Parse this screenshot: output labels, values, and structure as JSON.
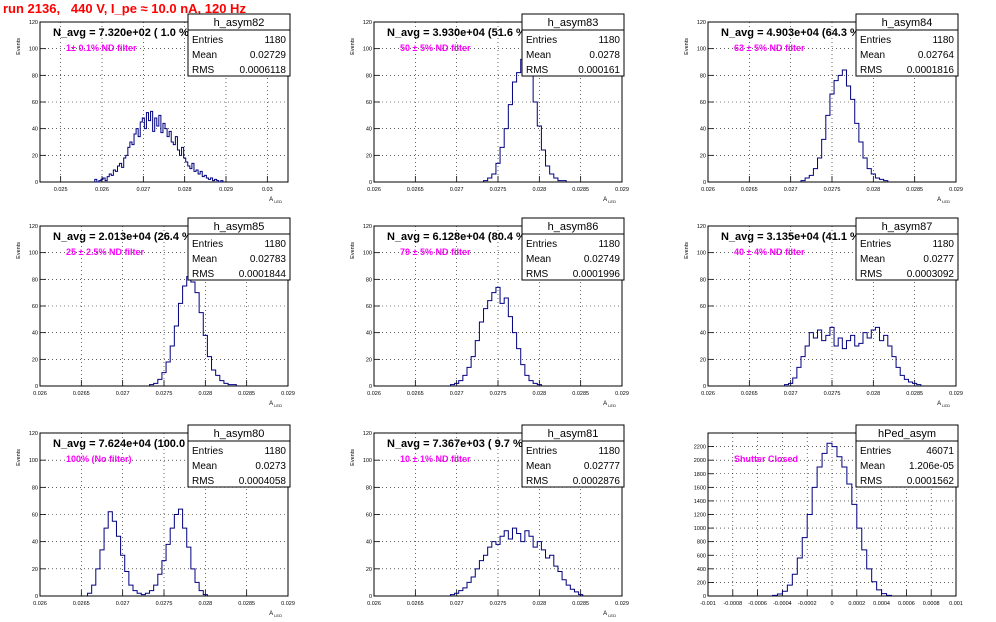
{
  "page": {
    "title": "run 2136,   440 V, I_pe ≈ 10.0 nA, 120 Hz",
    "title_color": "#ff0000",
    "hist_color": "#000080",
    "note_color": "#ff00ff"
  },
  "chart_data": [
    {
      "type": "histogram",
      "name": "h_asym82",
      "title": "N_avg = 7.320e+02 ( 1.0 %)",
      "annotation": "1± 0.1% ND filter",
      "stats": {
        "Entries": "1180",
        "Mean": "0.02729",
        "RMS": "0.0006118"
      },
      "ylabel": "Events",
      "xlabel": "A_LED",
      "xlim": [
        0.0245,
        0.0305
      ],
      "ylim": [
        0,
        120
      ],
      "x_ticks": [
        "0.025",
        "0.026",
        "0.027",
        "0.028",
        "0.029",
        "0.03"
      ],
      "y_ticks": [
        "0",
        "20",
        "40",
        "60",
        "80",
        "100",
        "120"
      ],
      "x": [
        0.02585,
        0.0259,
        0.02595,
        0.026,
        0.02605,
        0.0261,
        0.02615,
        0.0262,
        0.02625,
        0.0263,
        0.02635,
        0.0264,
        0.02645,
        0.0265,
        0.02655,
        0.0266,
        0.02665,
        0.0267,
        0.02675,
        0.0268,
        0.02685,
        0.0269,
        0.02695,
        0.027,
        0.02705,
        0.0271,
        0.02715,
        0.0272,
        0.02725,
        0.0273,
        0.02735,
        0.0274,
        0.02745,
        0.0275,
        0.02755,
        0.0276,
        0.02765,
        0.0277,
        0.02775,
        0.0278,
        0.02785,
        0.0279,
        0.02795,
        0.028,
        0.02805,
        0.0281,
        0.02815,
        0.0282,
        0.02825,
        0.0283,
        0.02835,
        0.0284,
        0.02845,
        0.0285,
        0.02855,
        0.0286,
        0.02865,
        0.0287,
        0.02875,
        0.0288,
        0.02885,
        0.0289
      ],
      "y": [
        2,
        0,
        1,
        2,
        3,
        1,
        4,
        6,
        5,
        9,
        8,
        12,
        14,
        11,
        18,
        20,
        26,
        30,
        28,
        36,
        40,
        34,
        45,
        48,
        40,
        52,
        46,
        53,
        38,
        48,
        42,
        50,
        37,
        44,
        40,
        34,
        38,
        30,
        28,
        34,
        24,
        20,
        26,
        18,
        15,
        12,
        10,
        14,
        8,
        9,
        6,
        8,
        4,
        5,
        3,
        2,
        3,
        1,
        2,
        1,
        0,
        1
      ]
    },
    {
      "type": "histogram",
      "name": "h_asym83",
      "title": "N_avg = 3.930e+04 (51.6 %)",
      "annotation": "50 ± 5% ND filter",
      "stats": {
        "Entries": "1180",
        "Mean": "0.0278",
        "RMS": "0.000161"
      },
      "ylabel": "Events",
      "xlabel": "A_LED",
      "xlim": [
        0.026,
        0.029
      ],
      "ylim": [
        0,
        120
      ],
      "x_ticks": [
        "0.026",
        "0.0265",
        "0.027",
        "0.0275",
        "0.028",
        "0.0285",
        "0.029"
      ],
      "y_ticks": [
        "0",
        "20",
        "40",
        "60",
        "80",
        "100",
        "120"
      ],
      "x": [
        0.02735,
        0.0274,
        0.02745,
        0.0275,
        0.02755,
        0.0276,
        0.02765,
        0.0277,
        0.02775,
        0.0278,
        0.02785,
        0.0279,
        0.02795,
        0.028,
        0.02805,
        0.0281,
        0.02815,
        0.0282,
        0.02825,
        0.0283
      ],
      "y": [
        1,
        3,
        6,
        14,
        26,
        40,
        58,
        75,
        82,
        92,
        86,
        80,
        60,
        42,
        24,
        12,
        6,
        3,
        1,
        1
      ]
    },
    {
      "type": "histogram",
      "name": "h_asym84",
      "title": "N_avg = 4.903e+04 (64.3 %)",
      "annotation": "63 ± 5% ND filter",
      "stats": {
        "Entries": "1180",
        "Mean": "0.02764",
        "RMS": "0.0001816"
      },
      "ylabel": "Events",
      "xlabel": "A_LED",
      "xlim": [
        0.026,
        0.029
      ],
      "ylim": [
        0,
        120
      ],
      "x_ticks": [
        "0.026",
        "0.0265",
        "0.027",
        "0.0275",
        "0.028",
        "0.0285",
        "0.029"
      ],
      "y_ticks": [
        "0",
        "20",
        "40",
        "60",
        "80",
        "100",
        "120"
      ],
      "x": [
        0.02715,
        0.0272,
        0.02725,
        0.0273,
        0.02735,
        0.0274,
        0.02745,
        0.0275,
        0.02755,
        0.0276,
        0.02765,
        0.0277,
        0.02775,
        0.0278,
        0.02785,
        0.0279,
        0.02795,
        0.028,
        0.02805,
        0.0281,
        0.02815
      ],
      "y": [
        1,
        3,
        5,
        10,
        18,
        32,
        50,
        66,
        76,
        80,
        84,
        72,
        62,
        44,
        30,
        18,
        10,
        6,
        3,
        2,
        1
      ]
    },
    {
      "type": "histogram",
      "name": "h_asym85",
      "title": "N_avg = 2.013e+04 (26.4 %)",
      "annotation": "25 ± 2.5% ND filter",
      "stats": {
        "Entries": "1180",
        "Mean": "0.02783",
        "RMS": "0.0001844"
      },
      "ylabel": "Events",
      "xlabel": "A_LED",
      "xlim": [
        0.026,
        0.029
      ],
      "ylim": [
        0,
        120
      ],
      "x_ticks": [
        "0.026",
        "0.0265",
        "0.027",
        "0.0275",
        "0.028",
        "0.0285",
        "0.029"
      ],
      "y_ticks": [
        "0",
        "20",
        "40",
        "60",
        "80",
        "100",
        "120"
      ],
      "x": [
        0.02735,
        0.0274,
        0.02745,
        0.0275,
        0.02755,
        0.0276,
        0.02765,
        0.0277,
        0.02775,
        0.0278,
        0.02785,
        0.0279,
        0.02795,
        0.028,
        0.02805,
        0.0281,
        0.02815,
        0.0282,
        0.02825,
        0.0283,
        0.02835
      ],
      "y": [
        1,
        2,
        5,
        10,
        18,
        30,
        45,
        62,
        75,
        82,
        78,
        70,
        55,
        38,
        22,
        12,
        8,
        4,
        2,
        1,
        1
      ]
    },
    {
      "type": "histogram",
      "name": "h_asym86",
      "title": "N_avg = 6.128e+04 (80.4 %)",
      "annotation": "79 ± 5% ND filter",
      "stats": {
        "Entries": "1180",
        "Mean": "0.02749",
        "RMS": "0.0001996"
      },
      "ylabel": "Events",
      "xlabel": "A_LED",
      "xlim": [
        0.026,
        0.029
      ],
      "ylim": [
        0,
        120
      ],
      "x_ticks": [
        "0.026",
        "0.0265",
        "0.027",
        "0.0275",
        "0.028",
        "0.0285",
        "0.029"
      ],
      "y_ticks": [
        "0",
        "20",
        "40",
        "60",
        "80",
        "100",
        "120"
      ],
      "x": [
        0.02695,
        0.027,
        0.02705,
        0.0271,
        0.02715,
        0.0272,
        0.02725,
        0.0273,
        0.02735,
        0.0274,
        0.02745,
        0.0275,
        0.02755,
        0.0276,
        0.02765,
        0.0277,
        0.02775,
        0.0278,
        0.02785,
        0.0279,
        0.02795,
        0.028
      ],
      "y": [
        1,
        2,
        4,
        8,
        14,
        22,
        34,
        48,
        58,
        64,
        70,
        74,
        62,
        66,
        52,
        40,
        28,
        16,
        8,
        4,
        2,
        1
      ]
    },
    {
      "type": "histogram",
      "name": "h_asym87",
      "title": "N_avg = 3.135e+04 (41.1 %)",
      "annotation": "40 ± 4% ND filter",
      "stats": {
        "Entries": "1180",
        "Mean": "0.0277",
        "RMS": "0.0003092"
      },
      "ylabel": "Events",
      "xlabel": "A_LED",
      "xlim": [
        0.026,
        0.029
      ],
      "ylim": [
        0,
        120
      ],
      "x_ticks": [
        "0.026",
        "0.0265",
        "0.027",
        "0.0275",
        "0.028",
        "0.0285",
        "0.029"
      ],
      "y_ticks": [
        "0",
        "20",
        "40",
        "60",
        "80",
        "100",
        "120"
      ],
      "x": [
        0.02695,
        0.027,
        0.02705,
        0.0271,
        0.02715,
        0.0272,
        0.02725,
        0.0273,
        0.02735,
        0.0274,
        0.02745,
        0.0275,
        0.02755,
        0.0276,
        0.02765,
        0.0277,
        0.02775,
        0.0278,
        0.02785,
        0.0279,
        0.02795,
        0.028,
        0.02805,
        0.0281,
        0.02815,
        0.0282,
        0.02825,
        0.0283,
        0.02835,
        0.0284,
        0.02845,
        0.0285,
        0.02855
      ],
      "y": [
        1,
        2,
        6,
        14,
        22,
        30,
        40,
        36,
        42,
        34,
        38,
        44,
        30,
        36,
        28,
        34,
        38,
        30,
        32,
        40,
        36,
        42,
        44,
        34,
        38,
        30,
        22,
        14,
        8,
        5,
        3,
        2,
        1
      ]
    },
    {
      "type": "histogram",
      "name": "h_asym80",
      "title": "N_avg = 7.624e+04 (100.0 %)",
      "annotation": "100% (No filter)",
      "stats": {
        "Entries": "1180",
        "Mean": "0.0273",
        "RMS": "0.0004058"
      },
      "ylabel": "Events",
      "xlabel": "A_LED",
      "xlim": [
        0.026,
        0.029
      ],
      "ylim": [
        0,
        120
      ],
      "x_ticks": [
        "0.026",
        "0.0265",
        "0.027",
        "0.0275",
        "0.028",
        "0.0285",
        "0.029"
      ],
      "y_ticks": [
        "0",
        "20",
        "40",
        "60",
        "80",
        "100",
        "120"
      ],
      "x": [
        0.0266,
        0.02665,
        0.0267,
        0.02675,
        0.0268,
        0.02685,
        0.0269,
        0.02695,
        0.027,
        0.02705,
        0.0271,
        0.02715,
        0.0272,
        0.02725,
        0.0273,
        0.02735,
        0.0274,
        0.02745,
        0.0275,
        0.02755,
        0.0276,
        0.02765,
        0.0277,
        0.02775,
        0.0278,
        0.02785,
        0.0279,
        0.02795,
        0.028
      ],
      "y": [
        2,
        8,
        20,
        34,
        50,
        62,
        55,
        44,
        30,
        18,
        8,
        4,
        2,
        1,
        2,
        4,
        8,
        16,
        26,
        38,
        50,
        60,
        64,
        50,
        36,
        20,
        10,
        4,
        1
      ]
    },
    {
      "type": "histogram",
      "name": "h_asym81",
      "title": "N_avg = 7.367e+03 ( 9.7 %)",
      "annotation": "10 ± 1% ND filter",
      "stats": {
        "Entries": "1180",
        "Mean": "0.02777",
        "RMS": "0.0002876"
      },
      "ylabel": "Events",
      "xlabel": "A_LED",
      "xlim": [
        0.026,
        0.029
      ],
      "ylim": [
        0,
        120
      ],
      "x_ticks": [
        "0.026",
        "0.0265",
        "0.027",
        "0.0275",
        "0.028",
        "0.0285",
        "0.029"
      ],
      "y_ticks": [
        "0",
        "20",
        "40",
        "60",
        "80",
        "100",
        "120"
      ],
      "x": [
        0.02695,
        0.027,
        0.02705,
        0.0271,
        0.02715,
        0.0272,
        0.02725,
        0.0273,
        0.02735,
        0.0274,
        0.02745,
        0.0275,
        0.02755,
        0.0276,
        0.02765,
        0.0277,
        0.02775,
        0.0278,
        0.02785,
        0.0279,
        0.02795,
        0.028,
        0.02805,
        0.0281,
        0.02815,
        0.0282,
        0.02825,
        0.0283,
        0.02835,
        0.0284,
        0.02845,
        0.0285
      ],
      "y": [
        1,
        2,
        4,
        6,
        10,
        14,
        20,
        26,
        30,
        36,
        40,
        38,
        44,
        48,
        42,
        50,
        46,
        40,
        48,
        44,
        36,
        40,
        34,
        28,
        30,
        22,
        18,
        12,
        8,
        5,
        3,
        1
      ]
    },
    {
      "type": "histogram",
      "name": "hPed_asym",
      "title": "",
      "annotation": "Shutter Closed",
      "stats": {
        "Entries": "46071",
        "Mean": "1.206e-05",
        "RMS": "0.0001562"
      },
      "ylabel": "",
      "xlabel": "",
      "xlim": [
        -0.001,
        0.001
      ],
      "ylim": [
        0,
        2400
      ],
      "x_ticks": [
        "-0.001",
        "-0.0008",
        "-0.0006",
        "-0.0004",
        "-0.0002",
        "0",
        "0.0002",
        "0.0004",
        "0.0006",
        "0.0008",
        "0.001"
      ],
      "y_ticks": [
        "0",
        "200",
        "400",
        "600",
        "800",
        "1000",
        "1200",
        "1400",
        "1600",
        "1800",
        "2000",
        "2200"
      ],
      "x": [
        -0.00046,
        -0.00042,
        -0.00038,
        -0.00034,
        -0.0003,
        -0.00026,
        -0.00022,
        -0.00018,
        -0.00014,
        -0.0001,
        -6e-05,
        -2e-05,
        2e-05,
        6e-05,
        0.0001,
        0.00014,
        0.00018,
        0.00022,
        0.00026,
        0.0003,
        0.00034,
        0.00038,
        0.00042,
        0.00046
      ],
      "y": [
        10,
        30,
        70,
        160,
        320,
        560,
        860,
        1200,
        1600,
        1900,
        2100,
        2250,
        2200,
        2050,
        1900,
        1650,
        1350,
        1000,
        680,
        400,
        210,
        90,
        35,
        10
      ]
    }
  ]
}
